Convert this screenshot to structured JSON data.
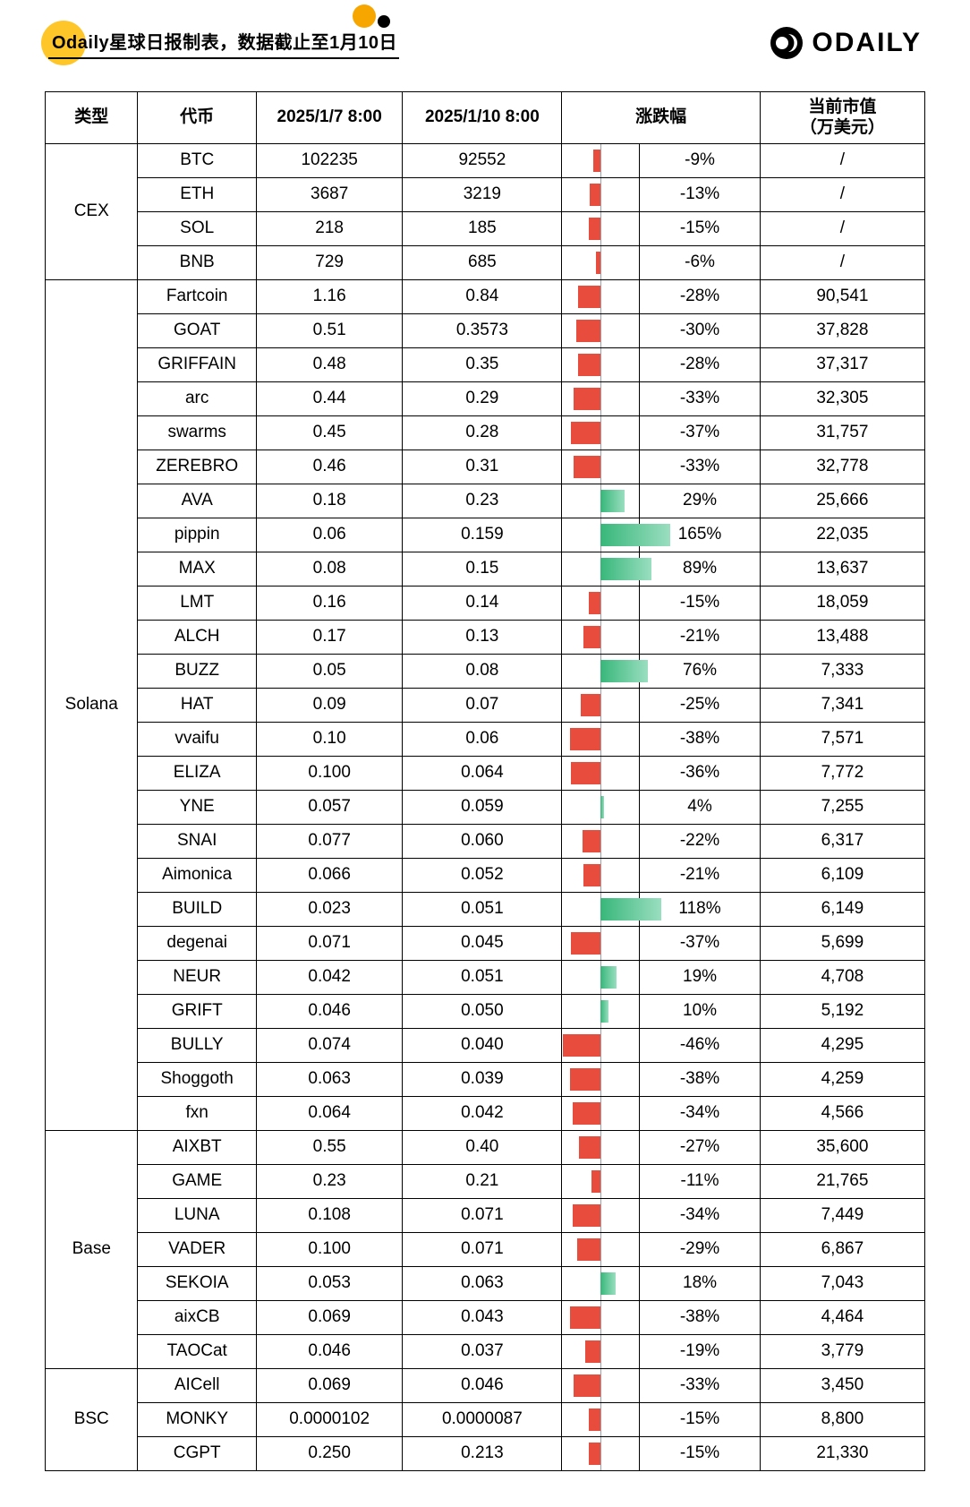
{
  "header": {
    "subtitle": "Odaily星球日报制表，数据截止至1月10日",
    "logo_text": "ODAILY"
  },
  "colors": {
    "accent_yellow": "#ffc629",
    "accent_orange": "#f7a600",
    "bar_negative": "#e74c3c",
    "bar_positive_start": "#38b77a",
    "bar_positive_end": "#9adec0",
    "border": "#000000",
    "background": "#ffffff"
  },
  "table": {
    "headers": {
      "type": "类型",
      "token": "代币",
      "p1": "2025/1/7 8:00",
      "p2": "2025/1/10 8:00",
      "change": "涨跌幅",
      "mcap": "当前市值（万美元）"
    },
    "bar_scale_max_pct": 46,
    "groups": [
      {
        "name": "CEX",
        "rows": [
          {
            "token": "BTC",
            "p1": "102235",
            "p2": "92552",
            "change": -9,
            "mcap": "/"
          },
          {
            "token": "ETH",
            "p1": "3687",
            "p2": "3219",
            "change": -13,
            "mcap": "/"
          },
          {
            "token": "SOL",
            "p1": "218",
            "p2": "185",
            "change": -15,
            "mcap": "/"
          },
          {
            "token": "BNB",
            "p1": "729",
            "p2": "685",
            "change": -6,
            "mcap": "/"
          }
        ]
      },
      {
        "name": "Solana",
        "rows": [
          {
            "token": "Fartcoin",
            "p1": "1.16",
            "p2": "0.84",
            "change": -28,
            "mcap": "90,541"
          },
          {
            "token": "GOAT",
            "p1": "0.51",
            "p2": "0.3573",
            "change": -30,
            "mcap": "37,828"
          },
          {
            "token": "GRIFFAIN",
            "p1": "0.48",
            "p2": "0.35",
            "change": -28,
            "mcap": "37,317"
          },
          {
            "token": "arc",
            "p1": "0.44",
            "p2": "0.29",
            "change": -33,
            "mcap": "32,305"
          },
          {
            "token": "swarms",
            "p1": "0.45",
            "p2": "0.28",
            "change": -37,
            "mcap": "31,757"
          },
          {
            "token": "ZEREBRO",
            "p1": "0.46",
            "p2": "0.31",
            "change": -33,
            "mcap": "32,778"
          },
          {
            "token": "AVA",
            "p1": "0.18",
            "p2": "0.23",
            "change": 29,
            "mcap": "25,666"
          },
          {
            "token": "pippin",
            "p1": "0.06",
            "p2": "0.159",
            "change": 165,
            "mcap": "22,035"
          },
          {
            "token": "MAX",
            "p1": "0.08",
            "p2": "0.15",
            "change": 89,
            "mcap": "13,637"
          },
          {
            "token": "LMT",
            "p1": "0.16",
            "p2": "0.14",
            "change": -15,
            "mcap": "18,059"
          },
          {
            "token": "ALCH",
            "p1": "0.17",
            "p2": "0.13",
            "change": -21,
            "mcap": "13,488"
          },
          {
            "token": "BUZZ",
            "p1": "0.05",
            "p2": "0.08",
            "change": 76,
            "mcap": "7,333"
          },
          {
            "token": "HAT",
            "p1": "0.09",
            "p2": "0.07",
            "change": -25,
            "mcap": "7,341"
          },
          {
            "token": "vvaifu",
            "p1": "0.10",
            "p2": "0.06",
            "change": -38,
            "mcap": "7,571"
          },
          {
            "token": "ELIZA",
            "p1": "0.100",
            "p2": "0.064",
            "change": -36,
            "mcap": "7,772"
          },
          {
            "token": "YNE",
            "p1": "0.057",
            "p2": "0.059",
            "change": 4,
            "mcap": "7,255"
          },
          {
            "token": "SNAI",
            "p1": "0.077",
            "p2": "0.060",
            "change": -22,
            "mcap": "6,317"
          },
          {
            "token": "Aimonica",
            "p1": "0.066",
            "p2": "0.052",
            "change": -21,
            "mcap": "6,109"
          },
          {
            "token": "BUILD",
            "p1": "0.023",
            "p2": "0.051",
            "change": 118,
            "mcap": "6,149"
          },
          {
            "token": "degenai",
            "p1": "0.071",
            "p2": "0.045",
            "change": -37,
            "mcap": "5,699"
          },
          {
            "token": "NEUR",
            "p1": "0.042",
            "p2": "0.051",
            "change": 19,
            "mcap": "4,708"
          },
          {
            "token": "GRIFT",
            "p1": "0.046",
            "p2": "0.050",
            "change": 10,
            "mcap": "5,192"
          },
          {
            "token": "BULLY",
            "p1": "0.074",
            "p2": "0.040",
            "change": -46,
            "mcap": "4,295"
          },
          {
            "token": "Shoggoth",
            "p1": "0.063",
            "p2": "0.039",
            "change": -38,
            "mcap": "4,259"
          },
          {
            "token": "fxn",
            "p1": "0.064",
            "p2": "0.042",
            "change": -34,
            "mcap": "4,566"
          }
        ]
      },
      {
        "name": "Base",
        "rows": [
          {
            "token": "AIXBT",
            "p1": "0.55",
            "p2": "0.40",
            "change": -27,
            "mcap": "35,600"
          },
          {
            "token": "GAME",
            "p1": "0.23",
            "p2": "0.21",
            "change": -11,
            "mcap": "21,765"
          },
          {
            "token": "LUNA",
            "p1": "0.108",
            "p2": "0.071",
            "change": -34,
            "mcap": "7,449"
          },
          {
            "token": "VADER",
            "p1": "0.100",
            "p2": "0.071",
            "change": -29,
            "mcap": "6,867"
          },
          {
            "token": "SEKOIA",
            "p1": "0.053",
            "p2": "0.063",
            "change": 18,
            "mcap": "7,043"
          },
          {
            "token": "aixCB",
            "p1": "0.069",
            "p2": "0.043",
            "change": -38,
            "mcap": "4,464"
          },
          {
            "token": "TAOCat",
            "p1": "0.046",
            "p2": "0.037",
            "change": -19,
            "mcap": "3,779"
          }
        ]
      },
      {
        "name": "BSC",
        "rows": [
          {
            "token": "AICell",
            "p1": "0.069",
            "p2": "0.046",
            "change": -33,
            "mcap": "3,450"
          },
          {
            "token": "MONKY",
            "p1": "0.0000102",
            "p2": "0.0000087",
            "change": -15,
            "mcap": "8,800"
          },
          {
            "token": "CGPT",
            "p1": "0.250",
            "p2": "0.213",
            "change": -15,
            "mcap": "21,330"
          }
        ]
      }
    ]
  }
}
